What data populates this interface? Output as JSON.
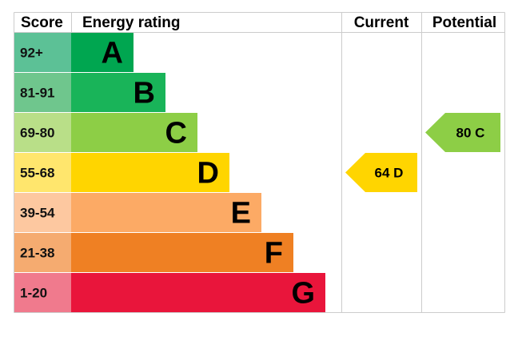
{
  "chart_data": {
    "type": "bar",
    "headers": {
      "score": "Score",
      "rating": "Energy rating",
      "current": "Current",
      "potential": "Potential"
    },
    "bands": [
      {
        "score": "92+",
        "letter": "A",
        "color": "#00a650",
        "score_color": "#5cc196"
      },
      {
        "score": "81-91",
        "letter": "B",
        "color": "#19b459",
        "score_color": "#6fc68d"
      },
      {
        "score": "69-80",
        "letter": "C",
        "color": "#8dce46",
        "score_color": "#b9df88"
      },
      {
        "score": "55-68",
        "letter": "D",
        "color": "#ffd500",
        "score_color": "#ffe66d"
      },
      {
        "score": "39-54",
        "letter": "E",
        "color": "#fcaa65",
        "score_color": "#fdc8a0"
      },
      {
        "score": "21-38",
        "letter": "F",
        "color": "#ef8023",
        "score_color": "#f5ab70"
      },
      {
        "score": "1-20",
        "letter": "G",
        "color": "#e9153b",
        "score_color": "#f07a8d"
      }
    ],
    "current": {
      "value": 64,
      "letter": "D",
      "label": "64 D",
      "color": "#ffd500"
    },
    "potential": {
      "value": 80,
      "letter": "C",
      "label": "80 C",
      "color": "#8dce46"
    }
  }
}
